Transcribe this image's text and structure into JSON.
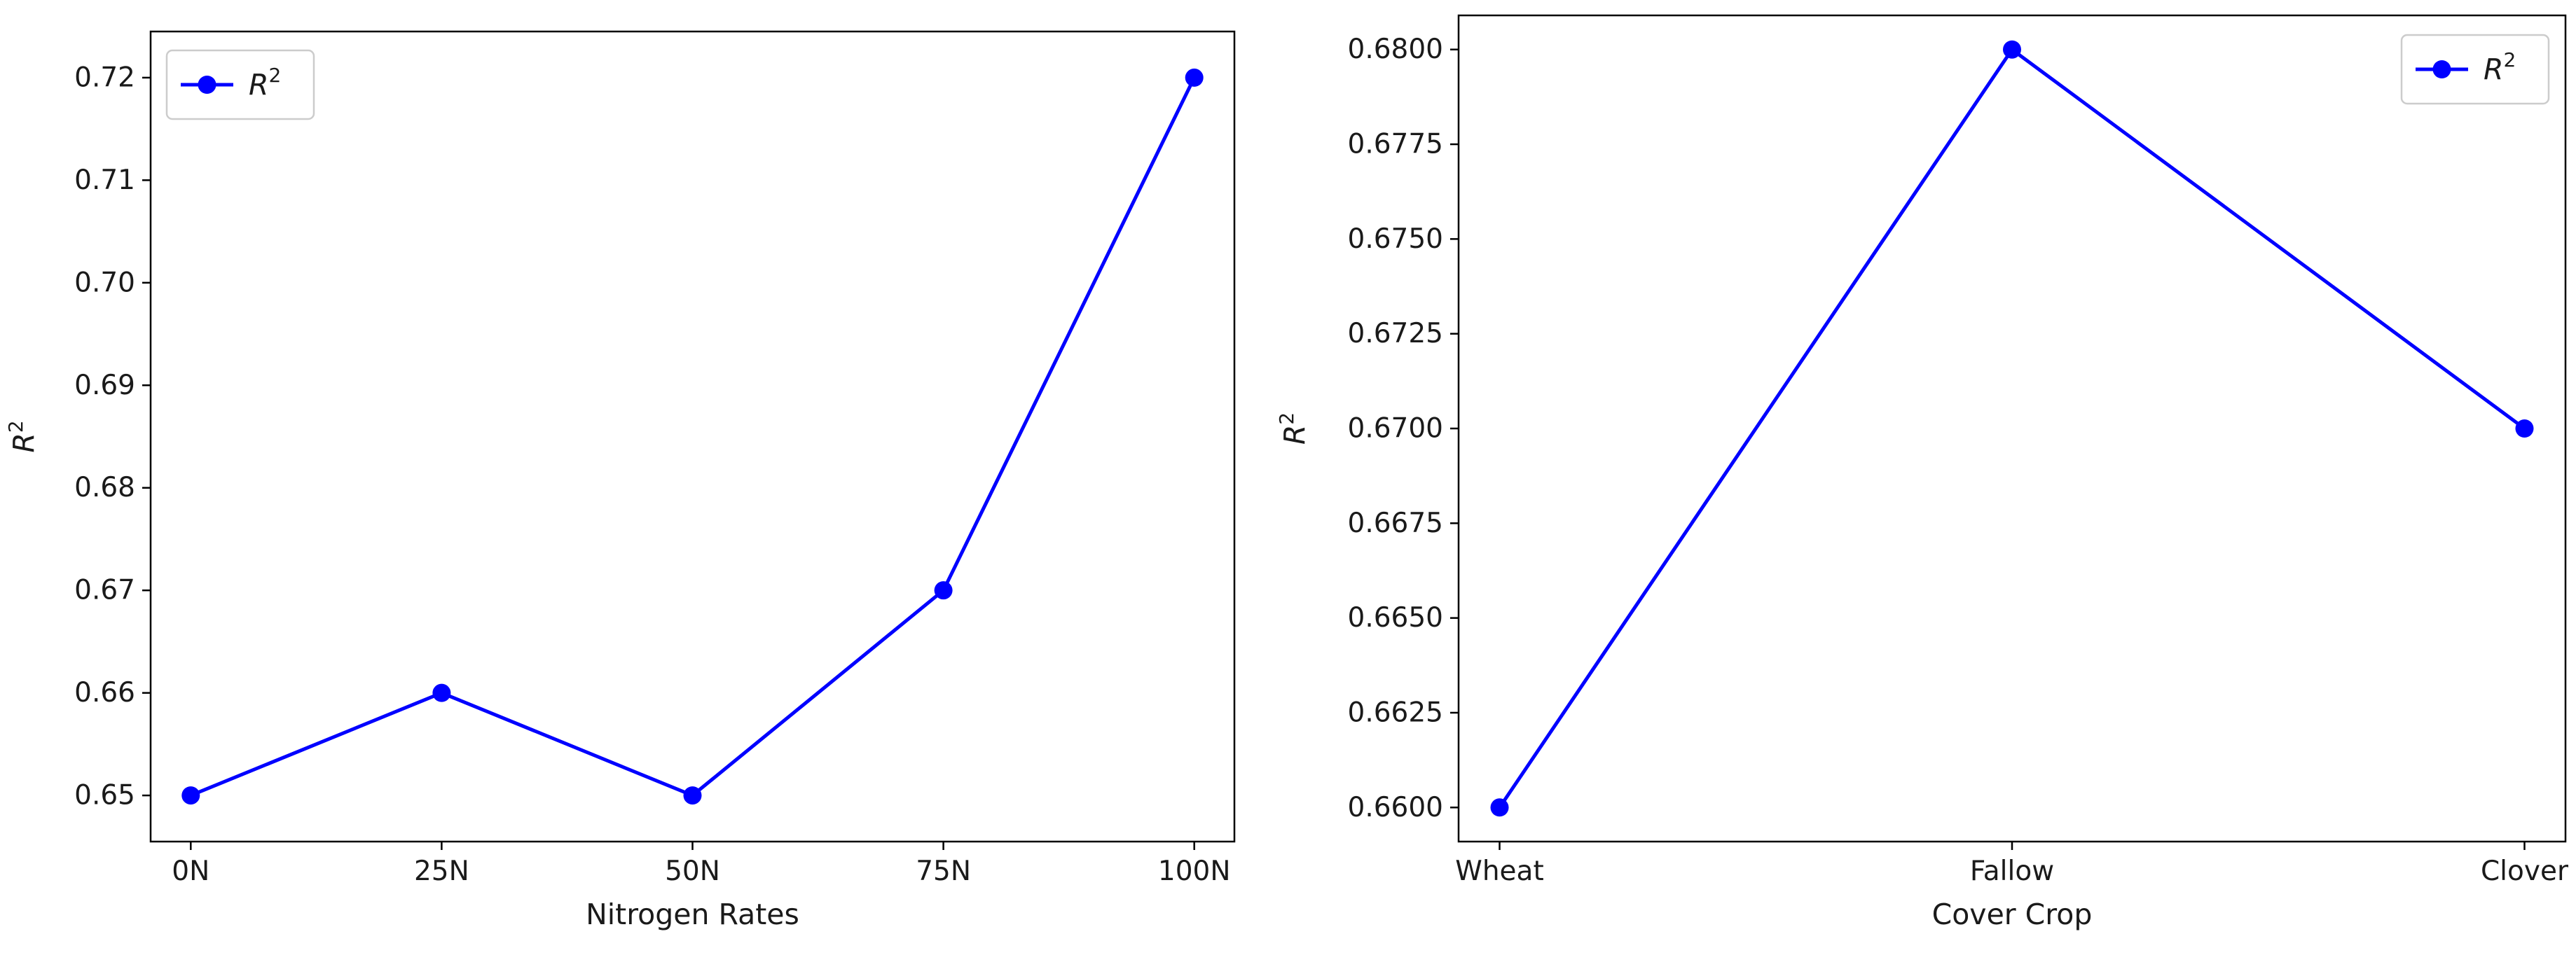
{
  "chart_data": [
    {
      "type": "line",
      "title": "",
      "xlabel": "Nitrogen Rates",
      "ylabel": "R",
      "ylabel_sup": "2",
      "categories": [
        "0N",
        "25N",
        "50N",
        "75N",
        "100N"
      ],
      "series": [
        {
          "name": "R",
          "name_sup": "2",
          "values": [
            0.65,
            0.66,
            0.65,
            0.67,
            0.72
          ],
          "color": "#0000ff",
          "marker": "circle"
        }
      ],
      "ylim": [
        0.6455,
        0.7245
      ],
      "yticks": [
        0.65,
        0.66,
        0.67,
        0.68,
        0.69,
        0.7,
        0.71,
        0.72
      ],
      "ytick_labels": [
        "0.65",
        "0.66",
        "0.67",
        "0.68",
        "0.69",
        "0.70",
        "0.71",
        "0.72"
      ],
      "grid": false,
      "legend": "upper left"
    },
    {
      "type": "line",
      "title": "",
      "xlabel": "Cover Crop",
      "ylabel": "R",
      "ylabel_sup": "2",
      "categories": [
        "Wheat",
        "Fallow",
        "Clover"
      ],
      "series": [
        {
          "name": "R",
          "name_sup": "2",
          "values": [
            0.66,
            0.68,
            0.67
          ],
          "color": "#0000ff",
          "marker": "circle"
        }
      ],
      "ylim": [
        0.6591,
        0.6809
      ],
      "yticks": [
        0.66,
        0.6625,
        0.665,
        0.6675,
        0.67,
        0.6725,
        0.675,
        0.6775,
        0.68
      ],
      "ytick_labels": [
        "0.6600",
        "0.6625",
        "0.6650",
        "0.6675",
        "0.6700",
        "0.6725",
        "0.6750",
        "0.6775",
        "0.6800"
      ],
      "grid": false,
      "legend": "upper right"
    }
  ]
}
